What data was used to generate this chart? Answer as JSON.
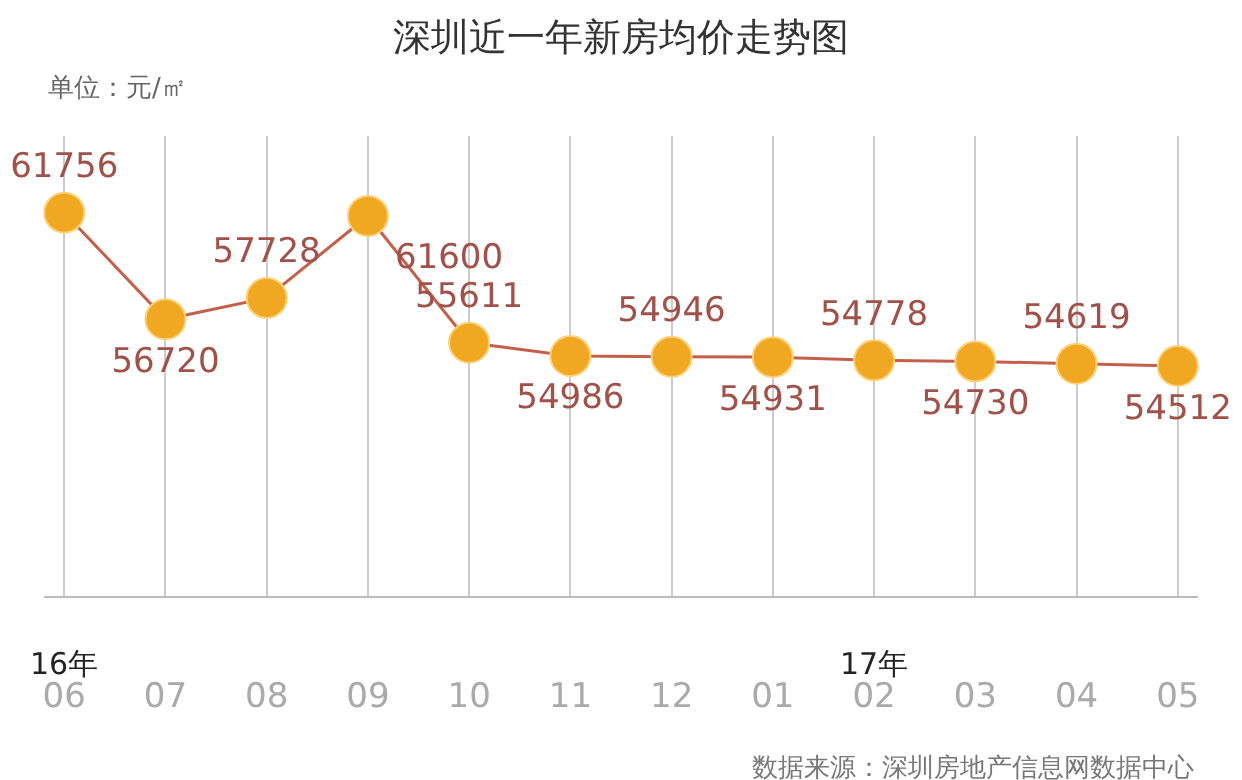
{
  "chart_data": {
    "type": "line",
    "title": "深圳近一年新房均价走势图",
    "categories": [
      "06",
      "07",
      "08",
      "09",
      "10",
      "11",
      "12",
      "01",
      "02",
      "03",
      "04",
      "05"
    ],
    "series": [
      {
        "color": "#f0a823",
        "values": [
          61756,
          56720,
          57728,
          61600,
          55611,
          54986,
          54946,
          54931,
          54778,
          54730,
          54619,
          54512
        ]
      }
    ],
    "data_labels": true,
    "marker": "circle",
    "line_style": "solid",
    "grid": "x",
    "tick_labels": "x",
    "legend": false,
    "annotations": [
      "单位：元/㎡",
      "16年",
      "17年",
      "数据来源：深圳房地产信息网数据中心"
    ]
  }
}
